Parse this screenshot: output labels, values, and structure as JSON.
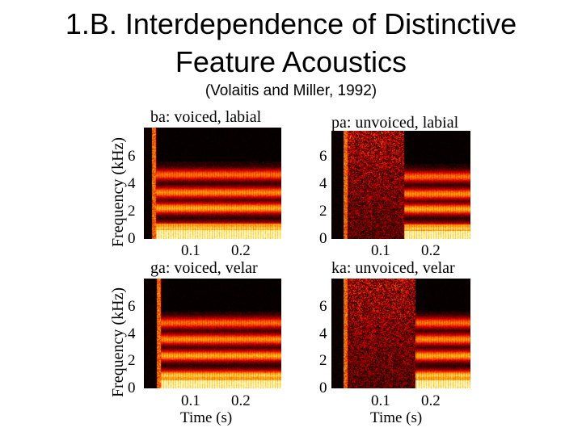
{
  "slide": {
    "title_line1": "1.B. Interdependence of Distinctive",
    "title_line2": "Feature Acoustics",
    "citation": "(Volaitis and Miller, 1992)"
  },
  "figure": {
    "ylabel": "Frequency (kHz)",
    "xlabel": "Time (s)",
    "yticks": [
      "6",
      "4",
      "2",
      "0"
    ],
    "xticks": [
      "0.1",
      "0.2"
    ],
    "panels": [
      {
        "id": "ba",
        "title": "ba: voiced, labial",
        "voicing": "voiced",
        "place": "labial",
        "voice_onset_s": 0.02
      },
      {
        "id": "pa",
        "title": "pa: unvoiced, labial",
        "voicing": "unvoiced",
        "place": "labial",
        "voice_onset_s": 0.13
      },
      {
        "id": "ga",
        "title": "ga: voiced, velar",
        "voicing": "voiced",
        "place": "velar",
        "voice_onset_s": 0.03
      },
      {
        "id": "ka",
        "title": "ka: unvoiced, velar",
        "voicing": "unvoiced",
        "place": "velar",
        "voice_onset_s": 0.15
      }
    ]
  }
}
